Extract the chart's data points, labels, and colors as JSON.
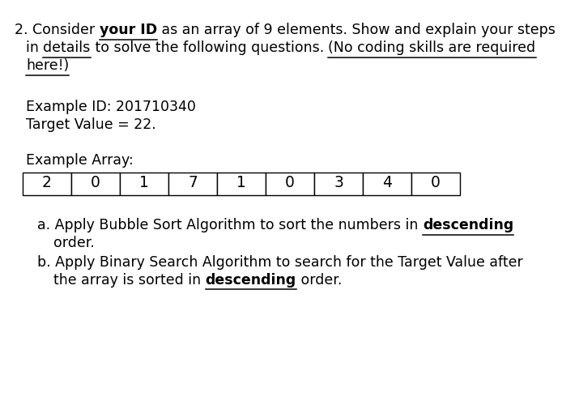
{
  "bg_color": "#ffffff",
  "array_values": [
    "2",
    "0",
    "1",
    "7",
    "1",
    "0",
    "3",
    "4",
    "0"
  ],
  "font_size": 12.5,
  "font_family": "DejaVu Sans",
  "lm": 0.025,
  "lm2": 0.058,
  "lm3": 0.075
}
